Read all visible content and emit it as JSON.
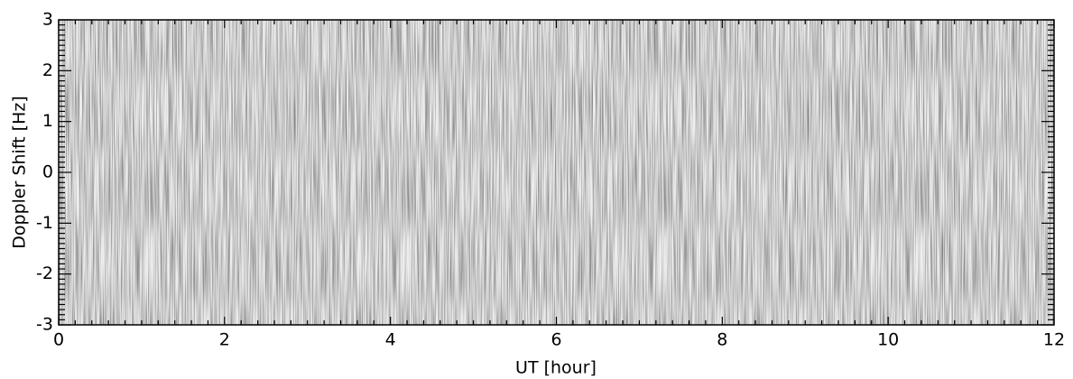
{
  "chart_data": {
    "type": "spectrogram",
    "xlabel": "UT [hour]",
    "ylabel": "Doppler Shift [Hz]",
    "xlim": [
      0,
      12
    ],
    "xticks": [
      0,
      2,
      4,
      6,
      8,
      10,
      12
    ],
    "ylim": [
      -3,
      3
    ],
    "yticks": [
      -3,
      -2,
      -1,
      0,
      1,
      2,
      3
    ]
  }
}
